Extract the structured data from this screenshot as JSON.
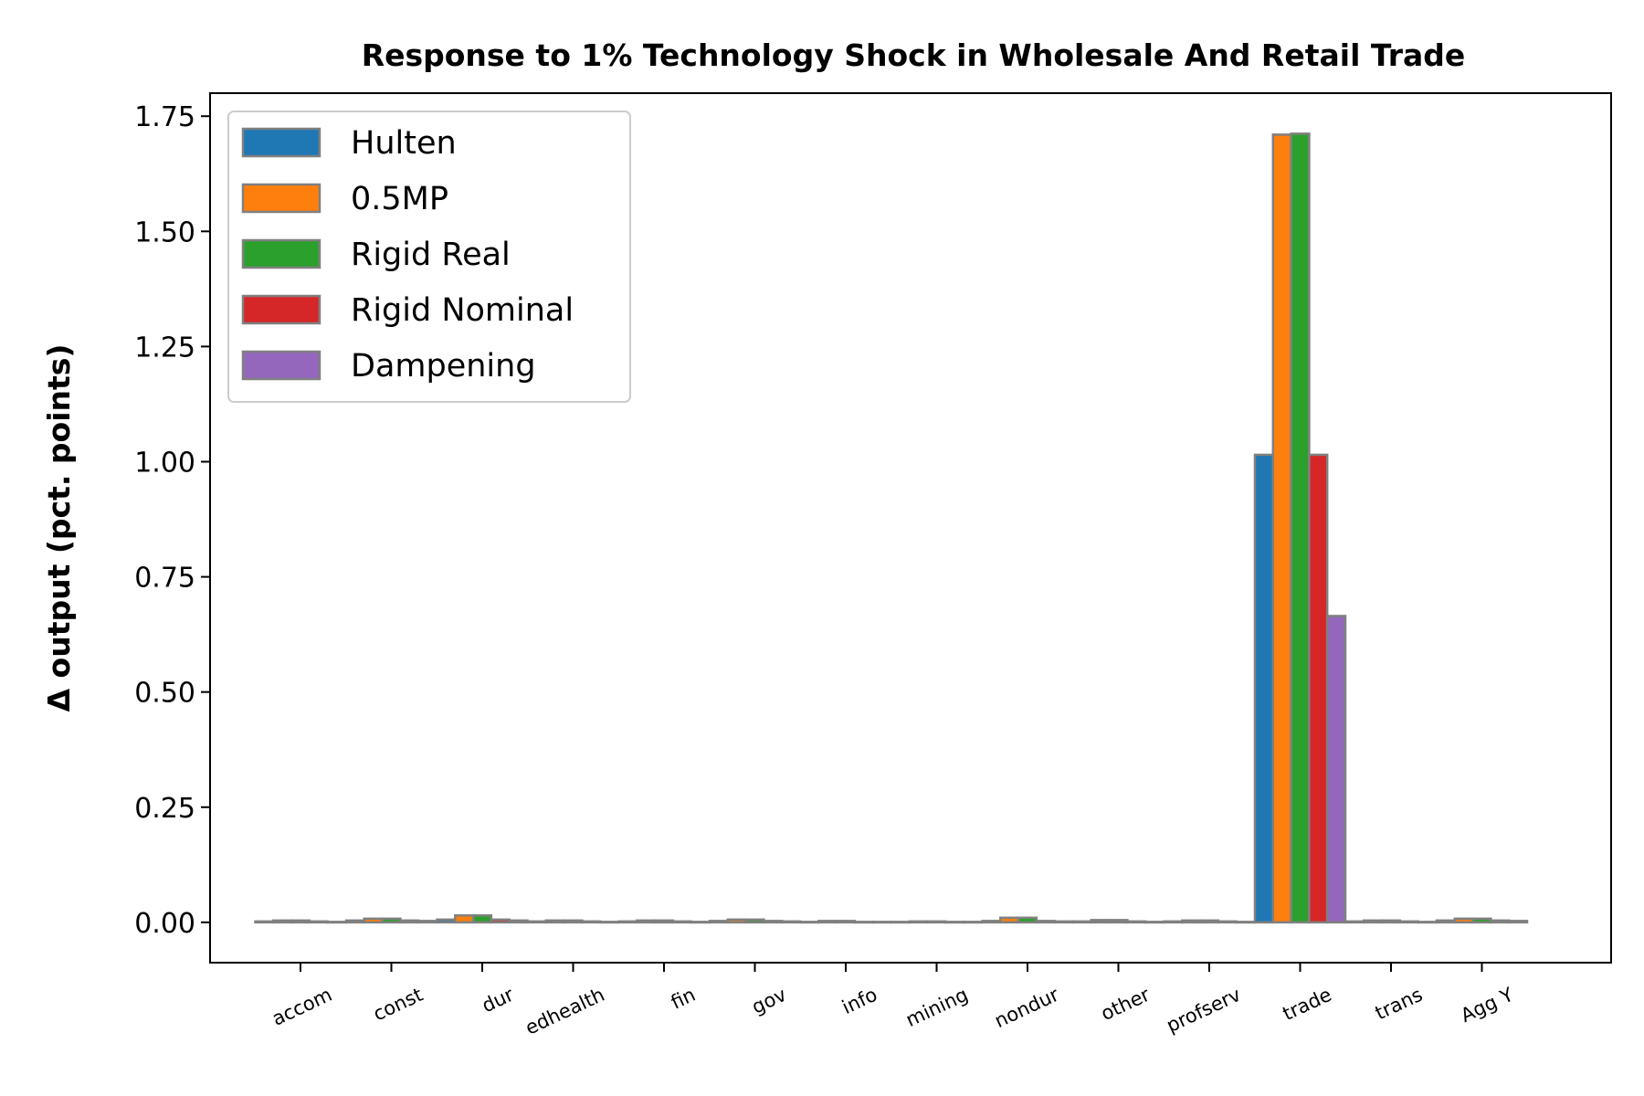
{
  "chart_data": {
    "type": "bar",
    "title": "Response to 1% Technology Shock in Wholesale And Retail Trade",
    "xlabel": "",
    "ylabel": "Δ output (pct. points)",
    "ylim": [
      -0.0875,
      1.8
    ],
    "yticks": [
      "0.00",
      "0.25",
      "0.50",
      "0.75",
      "1.00",
      "1.25",
      "1.50",
      "1.75"
    ],
    "ytick_values": [
      0,
      0.25,
      0.5,
      0.75,
      1.0,
      1.25,
      1.5,
      1.75
    ],
    "grid": false,
    "legend_position": "top-left",
    "bar_edge_color": "#808080",
    "categories": [
      "accom",
      "const",
      "dur",
      "edhealth",
      "fin",
      "gov",
      "info",
      "mining",
      "nondur",
      "other",
      "profserv",
      "trade",
      "trans",
      "Agg Y"
    ],
    "series": [
      {
        "name": "Hulten",
        "color": "#1f77b4",
        "values": [
          0.002,
          0.004,
          0.006,
          0.002,
          0.002,
          0.003,
          0.001,
          0.001,
          0.003,
          0.002,
          0.002,
          1.015,
          0.002,
          0.004
        ]
      },
      {
        "name": "0.5MP",
        "color": "#ff7f0e",
        "values": [
          0.004,
          0.008,
          0.015,
          0.004,
          0.004,
          0.006,
          0.003,
          0.002,
          0.01,
          0.005,
          0.004,
          1.71,
          0.004,
          0.008
        ]
      },
      {
        "name": "Rigid Real",
        "color": "#2ca02c",
        "values": [
          0.004,
          0.008,
          0.015,
          0.004,
          0.004,
          0.006,
          0.003,
          0.002,
          0.01,
          0.005,
          0.004,
          1.712,
          0.004,
          0.008
        ]
      },
      {
        "name": "Rigid Nominal",
        "color": "#d62728",
        "values": [
          0.002,
          0.004,
          0.006,
          0.002,
          0.002,
          0.003,
          0.001,
          0.001,
          0.003,
          0.002,
          0.002,
          1.015,
          0.002,
          0.004
        ]
      },
      {
        "name": "Dampening",
        "color": "#9467bd",
        "values": [
          0.001,
          0.003,
          0.004,
          0.001,
          0.001,
          0.002,
          0.001,
          0.001,
          0.002,
          0.001,
          0.001,
          0.665,
          0.001,
          0.003
        ]
      }
    ]
  }
}
